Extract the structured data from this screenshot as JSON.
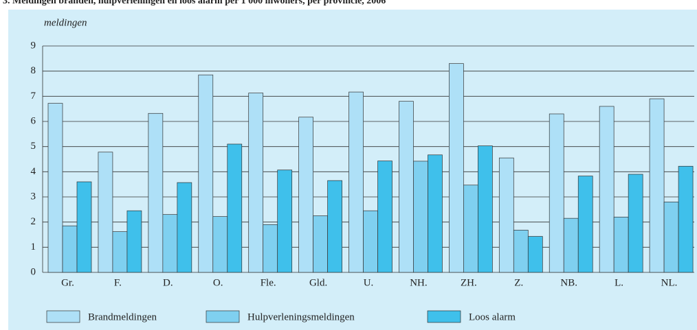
{
  "chart_data": {
    "type": "bar",
    "title": "3. Meldingen branden, hulpverleningen en loos alarm per 1 000 inwoners, per provincie, 2006",
    "y_label": "meldingen",
    "categories": [
      "Gr.",
      "F.",
      "D.",
      "O.",
      "Fle.",
      "Gld.",
      "U.",
      "NH.",
      "ZH.",
      "Z.",
      "NB.",
      "L.",
      "NL."
    ],
    "series": [
      {
        "name": "Brandmeldingen",
        "color": "#aee0f7",
        "values": [
          6.72,
          4.78,
          6.32,
          7.85,
          7.13,
          6.17,
          7.17,
          6.8,
          8.3,
          4.55,
          6.3,
          6.6,
          6.9
        ]
      },
      {
        "name": "Hulpverleningsmeldingen",
        "color": "#7fd0f0",
        "values": [
          1.85,
          1.62,
          2.3,
          2.22,
          1.9,
          2.25,
          2.45,
          4.42,
          3.47,
          1.68,
          2.15,
          2.2,
          2.8
        ]
      },
      {
        "name": "Loos alarm",
        "color": "#3fc0eb",
        "values": [
          3.6,
          2.45,
          3.57,
          5.1,
          4.07,
          3.65,
          4.43,
          4.67,
          5.03,
          1.43,
          3.83,
          3.9,
          4.22
        ]
      }
    ],
    "ylim": [
      0,
      9
    ],
    "yticks": [
      0,
      1,
      2,
      3,
      4,
      5,
      6,
      7,
      8,
      9
    ],
    "grid": true
  }
}
